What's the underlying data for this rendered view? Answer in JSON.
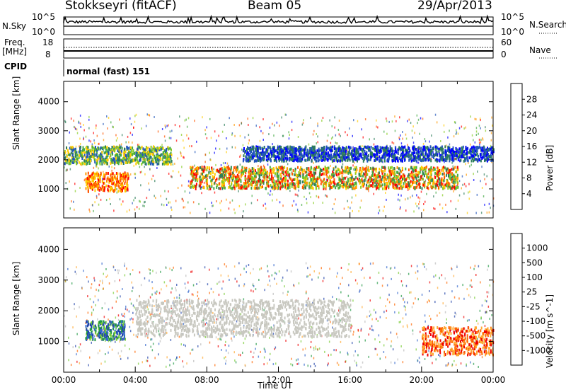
{
  "header": {
    "station": "Stokkseyri (fitACF)",
    "beam": "Beam 05",
    "date": "29/Apr/2013"
  },
  "nsky_panel": {
    "left_label": "N.Sky",
    "right_label": "N.Search",
    "left_ticks": [
      "10^5",
      "10^0"
    ],
    "right_ticks": [
      "10^5",
      "10^0"
    ]
  },
  "freq_panel": {
    "left_label_1": "Freq.",
    "left_label_2": "[MHz]",
    "right_label": "Nave",
    "left_ticks": [
      "18",
      "8"
    ],
    "right_ticks": [
      "60",
      "0"
    ]
  },
  "cpid": {
    "label": "CPID",
    "value": "normal (fast) 151"
  },
  "x_axis": {
    "label": "Time UT",
    "ticks": [
      "00:00",
      "04:00",
      "08:00",
      "12:00",
      "16:00",
      "20:00",
      "00:00"
    ]
  },
  "chart_data": [
    {
      "type": "heatmap",
      "ylabel": "Slant Range [km]",
      "y_ticks": [
        1000,
        2000,
        3000,
        4000
      ],
      "xlabel": "Time UT",
      "colorbar_label": "Power [dB]",
      "colorbar_ticks": [
        "28",
        "24",
        "20",
        "16",
        "12",
        "8",
        "4"
      ],
      "colors": [
        "#0000ff",
        "#2255bb",
        "#2e7d5a",
        "#44aa44",
        "#88cc22",
        "#ffcc00",
        "#ff9900",
        "#ff5500",
        "#ff0000"
      ],
      "bands_hours_km": [
        {
          "x": [
            1.2,
            3.6
          ],
          "y": [
            950,
            1600
          ],
          "level": "high"
        },
        {
          "x": [
            7.0,
            22.0
          ],
          "y": [
            1050,
            1800
          ],
          "level": "medium"
        },
        {
          "x": [
            0,
            6.0
          ],
          "y": [
            1900,
            2500
          ],
          "level": "low"
        },
        {
          "x": [
            10.0,
            24.0
          ],
          "y": [
            2000,
            2500
          ],
          "level": "weak"
        }
      ]
    },
    {
      "type": "heatmap",
      "ylabel": "Slant Range [km]",
      "y_ticks": [
        1000,
        2000,
        3000,
        4000
      ],
      "xlabel": "Time UT",
      "colorbar_label": "Velocity [m s^-1]",
      "colorbar_ticks": [
        "1000",
        "500",
        "100",
        "25",
        "-25",
        "-100",
        "-500",
        "-1000"
      ],
      "colors": [
        "#2244aa",
        "#3366cc",
        "#229944",
        "#77cc33",
        "#bbbbbb",
        "#ffaa33",
        "#ff6600",
        "#ee0000"
      ],
      "bands_hours_km": [
        {
          "x": [
            1.2,
            3.4
          ],
          "y": [
            1100,
            1700
          ],
          "level": "positive"
        },
        {
          "x": [
            4.0,
            16.0
          ],
          "y": [
            1200,
            2400
          ],
          "level": "ground-scatter"
        },
        {
          "x": [
            20.0,
            24.0
          ],
          "y": [
            600,
            1500
          ],
          "level": "negative"
        }
      ]
    }
  ]
}
